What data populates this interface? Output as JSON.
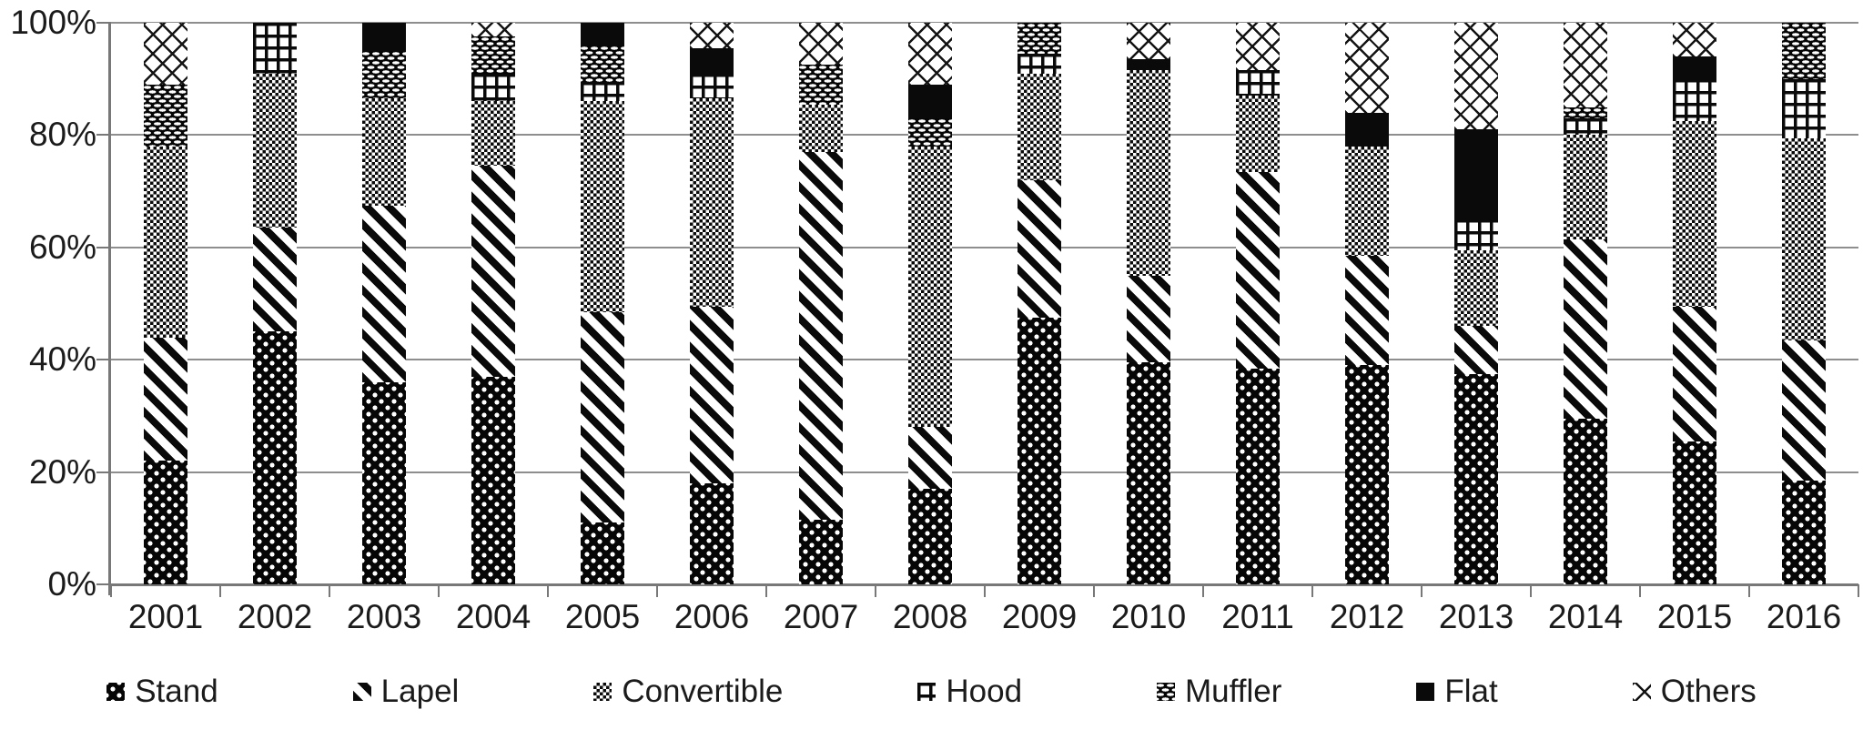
{
  "chart_data": {
    "type": "bar",
    "stacked": true,
    "units": "percent",
    "categories": [
      "2001",
      "2002",
      "2003",
      "2004",
      "2005",
      "2006",
      "2007",
      "2008",
      "2009",
      "2010",
      "2011",
      "2012",
      "2013",
      "2014",
      "2015",
      "2016"
    ],
    "series": [
      {
        "name": "Stand",
        "key": "stand",
        "pattern": "black-with-white-polka-dots",
        "values": [
          22,
          45,
          36,
          37,
          11,
          18,
          11.5,
          17,
          47.5,
          39.5,
          38.5,
          39,
          37.5,
          29.5,
          25.5,
          18.5
        ]
      },
      {
        "name": "Lapel",
        "key": "lapel",
        "pattern": "bold-backslash-diagonal-stripes",
        "values": [
          22,
          18.5,
          31.5,
          37.5,
          37.5,
          31.5,
          65.5,
          11,
          24.5,
          15.5,
          35,
          19.5,
          8.5,
          32,
          24,
          25
        ]
      },
      {
        "name": "Convertible",
        "key": "convertible",
        "pattern": "fine-checkerboard",
        "values": [
          34,
          27.5,
          19,
          11.5,
          37.5,
          37,
          8.5,
          50,
          19,
          36.5,
          13.5,
          19.5,
          13.5,
          18.5,
          33,
          36
        ]
      },
      {
        "name": "Hood",
        "key": "hood",
        "pattern": "open-grid-lines",
        "values": [
          0,
          9,
          0,
          5,
          3.5,
          4.5,
          0,
          0,
          3.5,
          0,
          4.5,
          0,
          5.5,
          3,
          7.5,
          10.5
        ]
      },
      {
        "name": "Muffler",
        "key": "muffler",
        "pattern": "black-with-white-brick-dashes",
        "values": [
          11,
          0,
          8.5,
          6.5,
          6.5,
          0,
          7,
          5,
          5.5,
          0,
          0,
          0,
          0,
          2,
          0,
          10
        ]
      },
      {
        "name": "Flat",
        "key": "flat",
        "pattern": "solid-black",
        "values": [
          0,
          0,
          5,
          0,
          4,
          4.5,
          0,
          6,
          0,
          2,
          0,
          6,
          16,
          0,
          4,
          0
        ]
      },
      {
        "name": "Others",
        "key": "others",
        "pattern": "thin-x-cross-lattice",
        "values": [
          11,
          0,
          0,
          2.5,
          0,
          4.5,
          7.5,
          11,
          0,
          6.5,
          8.5,
          16,
          19,
          15,
          6,
          0
        ]
      }
    ],
    "y_axis": {
      "min": 0,
      "max": 100,
      "ticks": [
        {
          "label": "0%",
          "value": 0
        },
        {
          "label": "20%",
          "value": 20
        },
        {
          "label": "40%",
          "value": 40
        },
        {
          "label": "60%",
          "value": 60
        },
        {
          "label": "80%",
          "value": 80
        },
        {
          "label": "100%",
          "value": 100
        }
      ]
    },
    "grid": true,
    "legend_position": "bottom",
    "colors": {
      "foreground": "#0a0a0a",
      "background": "#ffffff",
      "gridline": "#8e8e8e",
      "axis": "#787878",
      "text": "#1b1b1b"
    }
  }
}
